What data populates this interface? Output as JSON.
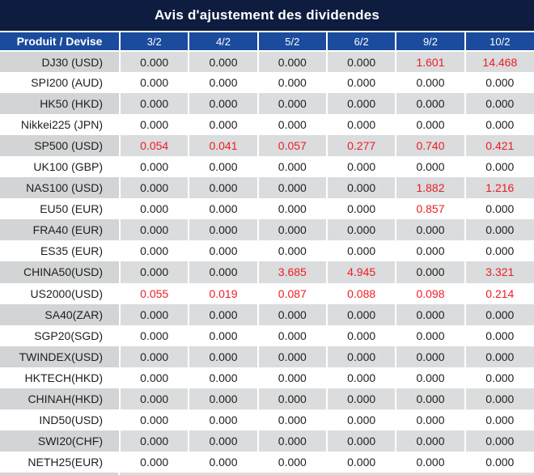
{
  "title": "Avis d'ajustement des dividendes",
  "colors": {
    "title_bg": "#0d1c3f",
    "header_bg": "#1a4b9d",
    "stripe_label_bg": "#d2d4d6",
    "stripe_value_bg": "#dadcdd",
    "red": "#ed1c24",
    "text": "#1e1e1e",
    "header_text": "#ffffff"
  },
  "chart_data": {
    "type": "table",
    "title": "Avis d'ajustement des dividendes",
    "columns": [
      "Produit / Devise",
      "3/2",
      "4/2",
      "5/2",
      "6/2",
      "9/2",
      "10/2"
    ],
    "rows": [
      {
        "product": "DJ30 (USD)",
        "values": [
          "0.000",
          "0.000",
          "0.000",
          "0.000",
          "1.601",
          "14.468"
        ],
        "red": [
          false,
          false,
          false,
          false,
          true,
          true
        ]
      },
      {
        "product": "SPI200 (AUD)",
        "values": [
          "0.000",
          "0.000",
          "0.000",
          "0.000",
          "0.000",
          "0.000"
        ],
        "red": [
          false,
          false,
          false,
          false,
          false,
          false
        ]
      },
      {
        "product": "HK50 (HKD)",
        "values": [
          "0.000",
          "0.000",
          "0.000",
          "0.000",
          "0.000",
          "0.000"
        ],
        "red": [
          false,
          false,
          false,
          false,
          false,
          false
        ]
      },
      {
        "product": "Nikkei225 (JPN)",
        "values": [
          "0.000",
          "0.000",
          "0.000",
          "0.000",
          "0.000",
          "0.000"
        ],
        "red": [
          false,
          false,
          false,
          false,
          false,
          false
        ]
      },
      {
        "product": "SP500 (USD)",
        "values": [
          "0.054",
          "0.041",
          "0.057",
          "0.277",
          "0.740",
          "0.421"
        ],
        "red": [
          true,
          true,
          true,
          true,
          true,
          true
        ]
      },
      {
        "product": "UK100 (GBP)",
        "values": [
          "0.000",
          "0.000",
          "0.000",
          "0.000",
          "0.000",
          "0.000"
        ],
        "red": [
          false,
          false,
          false,
          false,
          false,
          false
        ]
      },
      {
        "product": "NAS100 (USD)",
        "values": [
          "0.000",
          "0.000",
          "0.000",
          "0.000",
          "1.882",
          "1.216"
        ],
        "red": [
          false,
          false,
          false,
          false,
          true,
          true
        ]
      },
      {
        "product": "EU50 (EUR)",
        "values": [
          "0.000",
          "0.000",
          "0.000",
          "0.000",
          "0.857",
          "0.000"
        ],
        "red": [
          false,
          false,
          false,
          false,
          true,
          false
        ]
      },
      {
        "product": "FRA40 (EUR)",
        "values": [
          "0.000",
          "0.000",
          "0.000",
          "0.000",
          "0.000",
          "0.000"
        ],
        "red": [
          false,
          false,
          false,
          false,
          false,
          false
        ]
      },
      {
        "product": "ES35 (EUR)",
        "values": [
          "0.000",
          "0.000",
          "0.000",
          "0.000",
          "0.000",
          "0.000"
        ],
        "red": [
          false,
          false,
          false,
          false,
          false,
          false
        ]
      },
      {
        "product": "CHINA50(USD)",
        "values": [
          "0.000",
          "0.000",
          "3.685",
          "4.945",
          "0.000",
          "3.321"
        ],
        "red": [
          false,
          false,
          true,
          true,
          false,
          true
        ]
      },
      {
        "product": "US2000(USD)",
        "values": [
          "0.055",
          "0.019",
          "0.087",
          "0.088",
          "0.098",
          "0.214"
        ],
        "red": [
          true,
          true,
          true,
          true,
          true,
          true
        ]
      },
      {
        "product": "SA40(ZAR)",
        "values": [
          "0.000",
          "0.000",
          "0.000",
          "0.000",
          "0.000",
          "0.000"
        ],
        "red": [
          false,
          false,
          false,
          false,
          false,
          false
        ]
      },
      {
        "product": "SGP20(SGD)",
        "values": [
          "0.000",
          "0.000",
          "0.000",
          "0.000",
          "0.000",
          "0.000"
        ],
        "red": [
          false,
          false,
          false,
          false,
          false,
          false
        ]
      },
      {
        "product": "TWINDEX(USD)",
        "values": [
          "0.000",
          "0.000",
          "0.000",
          "0.000",
          "0.000",
          "0.000"
        ],
        "red": [
          false,
          false,
          false,
          false,
          false,
          false
        ]
      },
      {
        "product": "HKTECH(HKD)",
        "values": [
          "0.000",
          "0.000",
          "0.000",
          "0.000",
          "0.000",
          "0.000"
        ],
        "red": [
          false,
          false,
          false,
          false,
          false,
          false
        ]
      },
      {
        "product": "CHINAH(HKD)",
        "values": [
          "0.000",
          "0.000",
          "0.000",
          "0.000",
          "0.000",
          "0.000"
        ],
        "red": [
          false,
          false,
          false,
          false,
          false,
          false
        ]
      },
      {
        "product": "IND50(USD)",
        "values": [
          "0.000",
          "0.000",
          "0.000",
          "0.000",
          "0.000",
          "0.000"
        ],
        "red": [
          false,
          false,
          false,
          false,
          false,
          false
        ]
      },
      {
        "product": "SWI20(CHF)",
        "values": [
          "0.000",
          "0.000",
          "0.000",
          "0.000",
          "0.000",
          "0.000"
        ],
        "red": [
          false,
          false,
          false,
          false,
          false,
          false
        ]
      },
      {
        "product": "NETH25(EUR)",
        "values": [
          "0.000",
          "0.000",
          "0.000",
          "0.000",
          "0.000",
          "0.000"
        ],
        "red": [
          false,
          false,
          false,
          false,
          false,
          false
        ]
      }
    ]
  }
}
